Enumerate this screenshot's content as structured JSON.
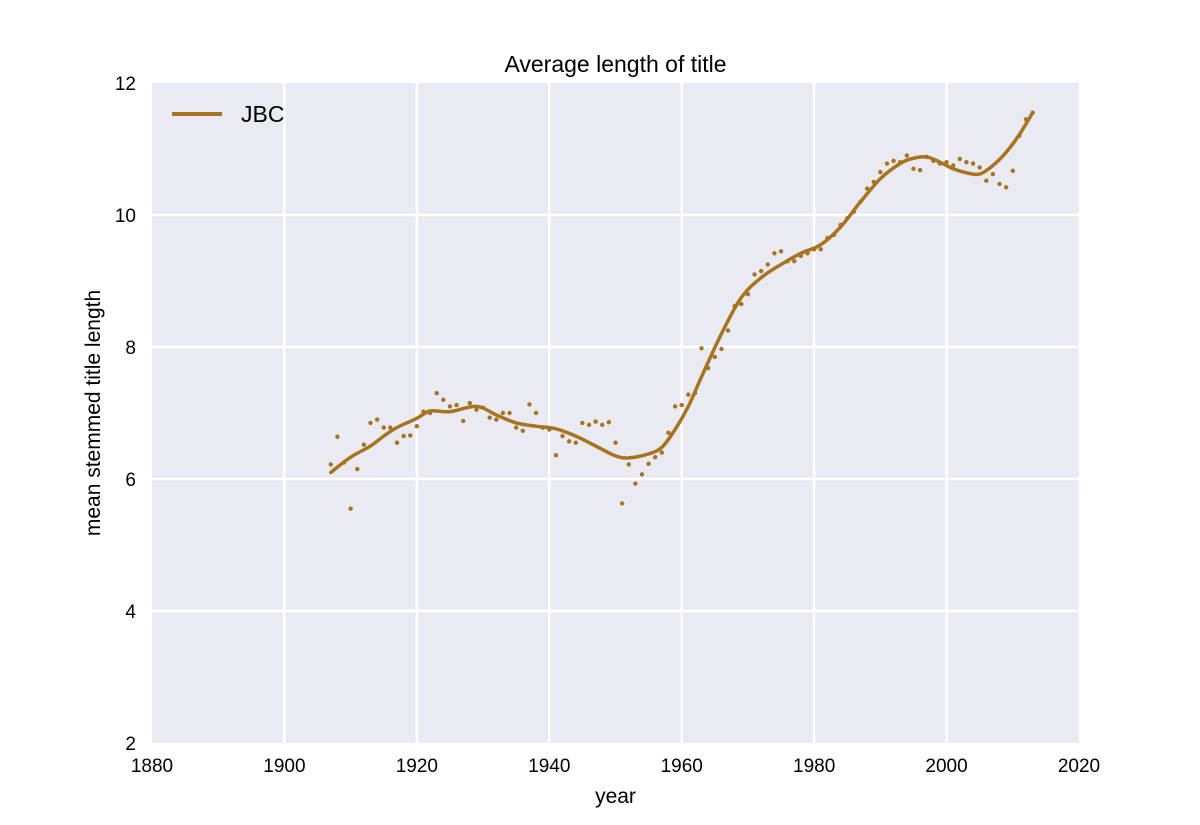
{
  "chart_data": {
    "type": "line",
    "title": "Average length of title",
    "xlabel": "year",
    "ylabel": "mean stemmed title length",
    "xlim": [
      1880,
      2020
    ],
    "ylim": [
      2,
      12
    ],
    "xticks": [
      1880,
      1900,
      1920,
      1940,
      1960,
      1980,
      2000,
      2020
    ],
    "yticks": [
      2,
      4,
      6,
      8,
      10,
      12
    ],
    "grid": true,
    "legend": {
      "position": "top-left",
      "entries": [
        "JBC"
      ]
    },
    "colors": {
      "series": "#A8731F",
      "background": "#EAEAF2",
      "grid": "#FFFFFF"
    },
    "series": [
      {
        "name": "JBC",
        "smoothed": {
          "x": [
            1907,
            1910,
            1913,
            1915,
            1917,
            1920,
            1922,
            1925,
            1929,
            1932,
            1935,
            1938,
            1941,
            1944,
            1947,
            1950,
            1952,
            1955,
            1957,
            1959,
            1961,
            1963,
            1966,
            1969,
            1972,
            1975,
            1978,
            1981,
            1984,
            1987,
            1990,
            1993,
            1995,
            1997,
            1999,
            2001,
            2003,
            2005,
            2007,
            2009,
            2011,
            2013
          ],
          "y": [
            6.1,
            6.33,
            6.5,
            6.65,
            6.78,
            6.92,
            7.03,
            7.02,
            7.1,
            6.97,
            6.85,
            6.8,
            6.76,
            6.65,
            6.5,
            6.35,
            6.32,
            6.38,
            6.48,
            6.75,
            7.1,
            7.55,
            8.2,
            8.75,
            9.05,
            9.25,
            9.42,
            9.55,
            9.82,
            10.2,
            10.55,
            10.78,
            10.86,
            10.88,
            10.8,
            10.7,
            10.64,
            10.62,
            10.75,
            10.95,
            11.22,
            11.55
          ]
        },
        "points": {
          "x": [
            1907,
            1908,
            1909,
            1910,
            1911,
            1912,
            1913,
            1914,
            1915,
            1916,
            1917,
            1918,
            1919,
            1920,
            1921,
            1922,
            1923,
            1924,
            1925,
            1926,
            1927,
            1928,
            1929,
            1930,
            1931,
            1932,
            1933,
            1934,
            1935,
            1936,
            1937,
            1938,
            1939,
            1940,
            1941,
            1942,
            1943,
            1944,
            1945,
            1946,
            1947,
            1948,
            1949,
            1950,
            1951,
            1952,
            1953,
            1954,
            1955,
            1956,
            1957,
            1958,
            1959,
            1960,
            1961,
            1962,
            1963,
            1964,
            1965,
            1966,
            1967,
            1968,
            1969,
            1970,
            1971,
            1972,
            1973,
            1974,
            1975,
            1976,
            1977,
            1978,
            1979,
            1980,
            1981,
            1982,
            1983,
            1984,
            1985,
            1986,
            1987,
            1988,
            1989,
            1990,
            1991,
            1992,
            1993,
            1994,
            1995,
            1996,
            1997,
            1998,
            1999,
            2000,
            2001,
            2002,
            2003,
            2004,
            2005,
            2006,
            2007,
            2008,
            2009,
            2010,
            2011,
            2012,
            2013
          ],
          "y": [
            6.22,
            6.64,
            6.25,
            5.55,
            6.15,
            6.52,
            6.85,
            6.9,
            6.78,
            6.78,
            6.55,
            6.65,
            6.66,
            6.8,
            7.02,
            7.0,
            7.3,
            7.2,
            7.1,
            7.12,
            6.88,
            7.15,
            7.05,
            7.08,
            6.93,
            6.9,
            7.0,
            7.0,
            6.78,
            6.73,
            7.13,
            7.0,
            6.78,
            6.75,
            6.36,
            6.65,
            6.57,
            6.55,
            6.85,
            6.82,
            6.87,
            6.82,
            6.86,
            6.55,
            5.63,
            6.22,
            5.93,
            6.07,
            6.23,
            6.33,
            6.4,
            6.7,
            7.1,
            7.12,
            7.28,
            7.3,
            7.98,
            7.68,
            7.85,
            7.97,
            8.25,
            8.62,
            8.65,
            8.8,
            9.1,
            9.15,
            9.25,
            9.42,
            9.45,
            9.3,
            9.3,
            9.38,
            9.42,
            9.48,
            9.48,
            9.65,
            9.7,
            9.85,
            9.95,
            10.05,
            10.2,
            10.4,
            10.5,
            10.65,
            10.78,
            10.82,
            10.8,
            10.9,
            10.7,
            10.68,
            10.88,
            10.82,
            10.78,
            10.8,
            10.75,
            10.85,
            10.8,
            10.78,
            10.72,
            10.52,
            10.62,
            10.47,
            10.42,
            10.67,
            11.2,
            11.45,
            11.55
          ]
        }
      }
    ]
  }
}
